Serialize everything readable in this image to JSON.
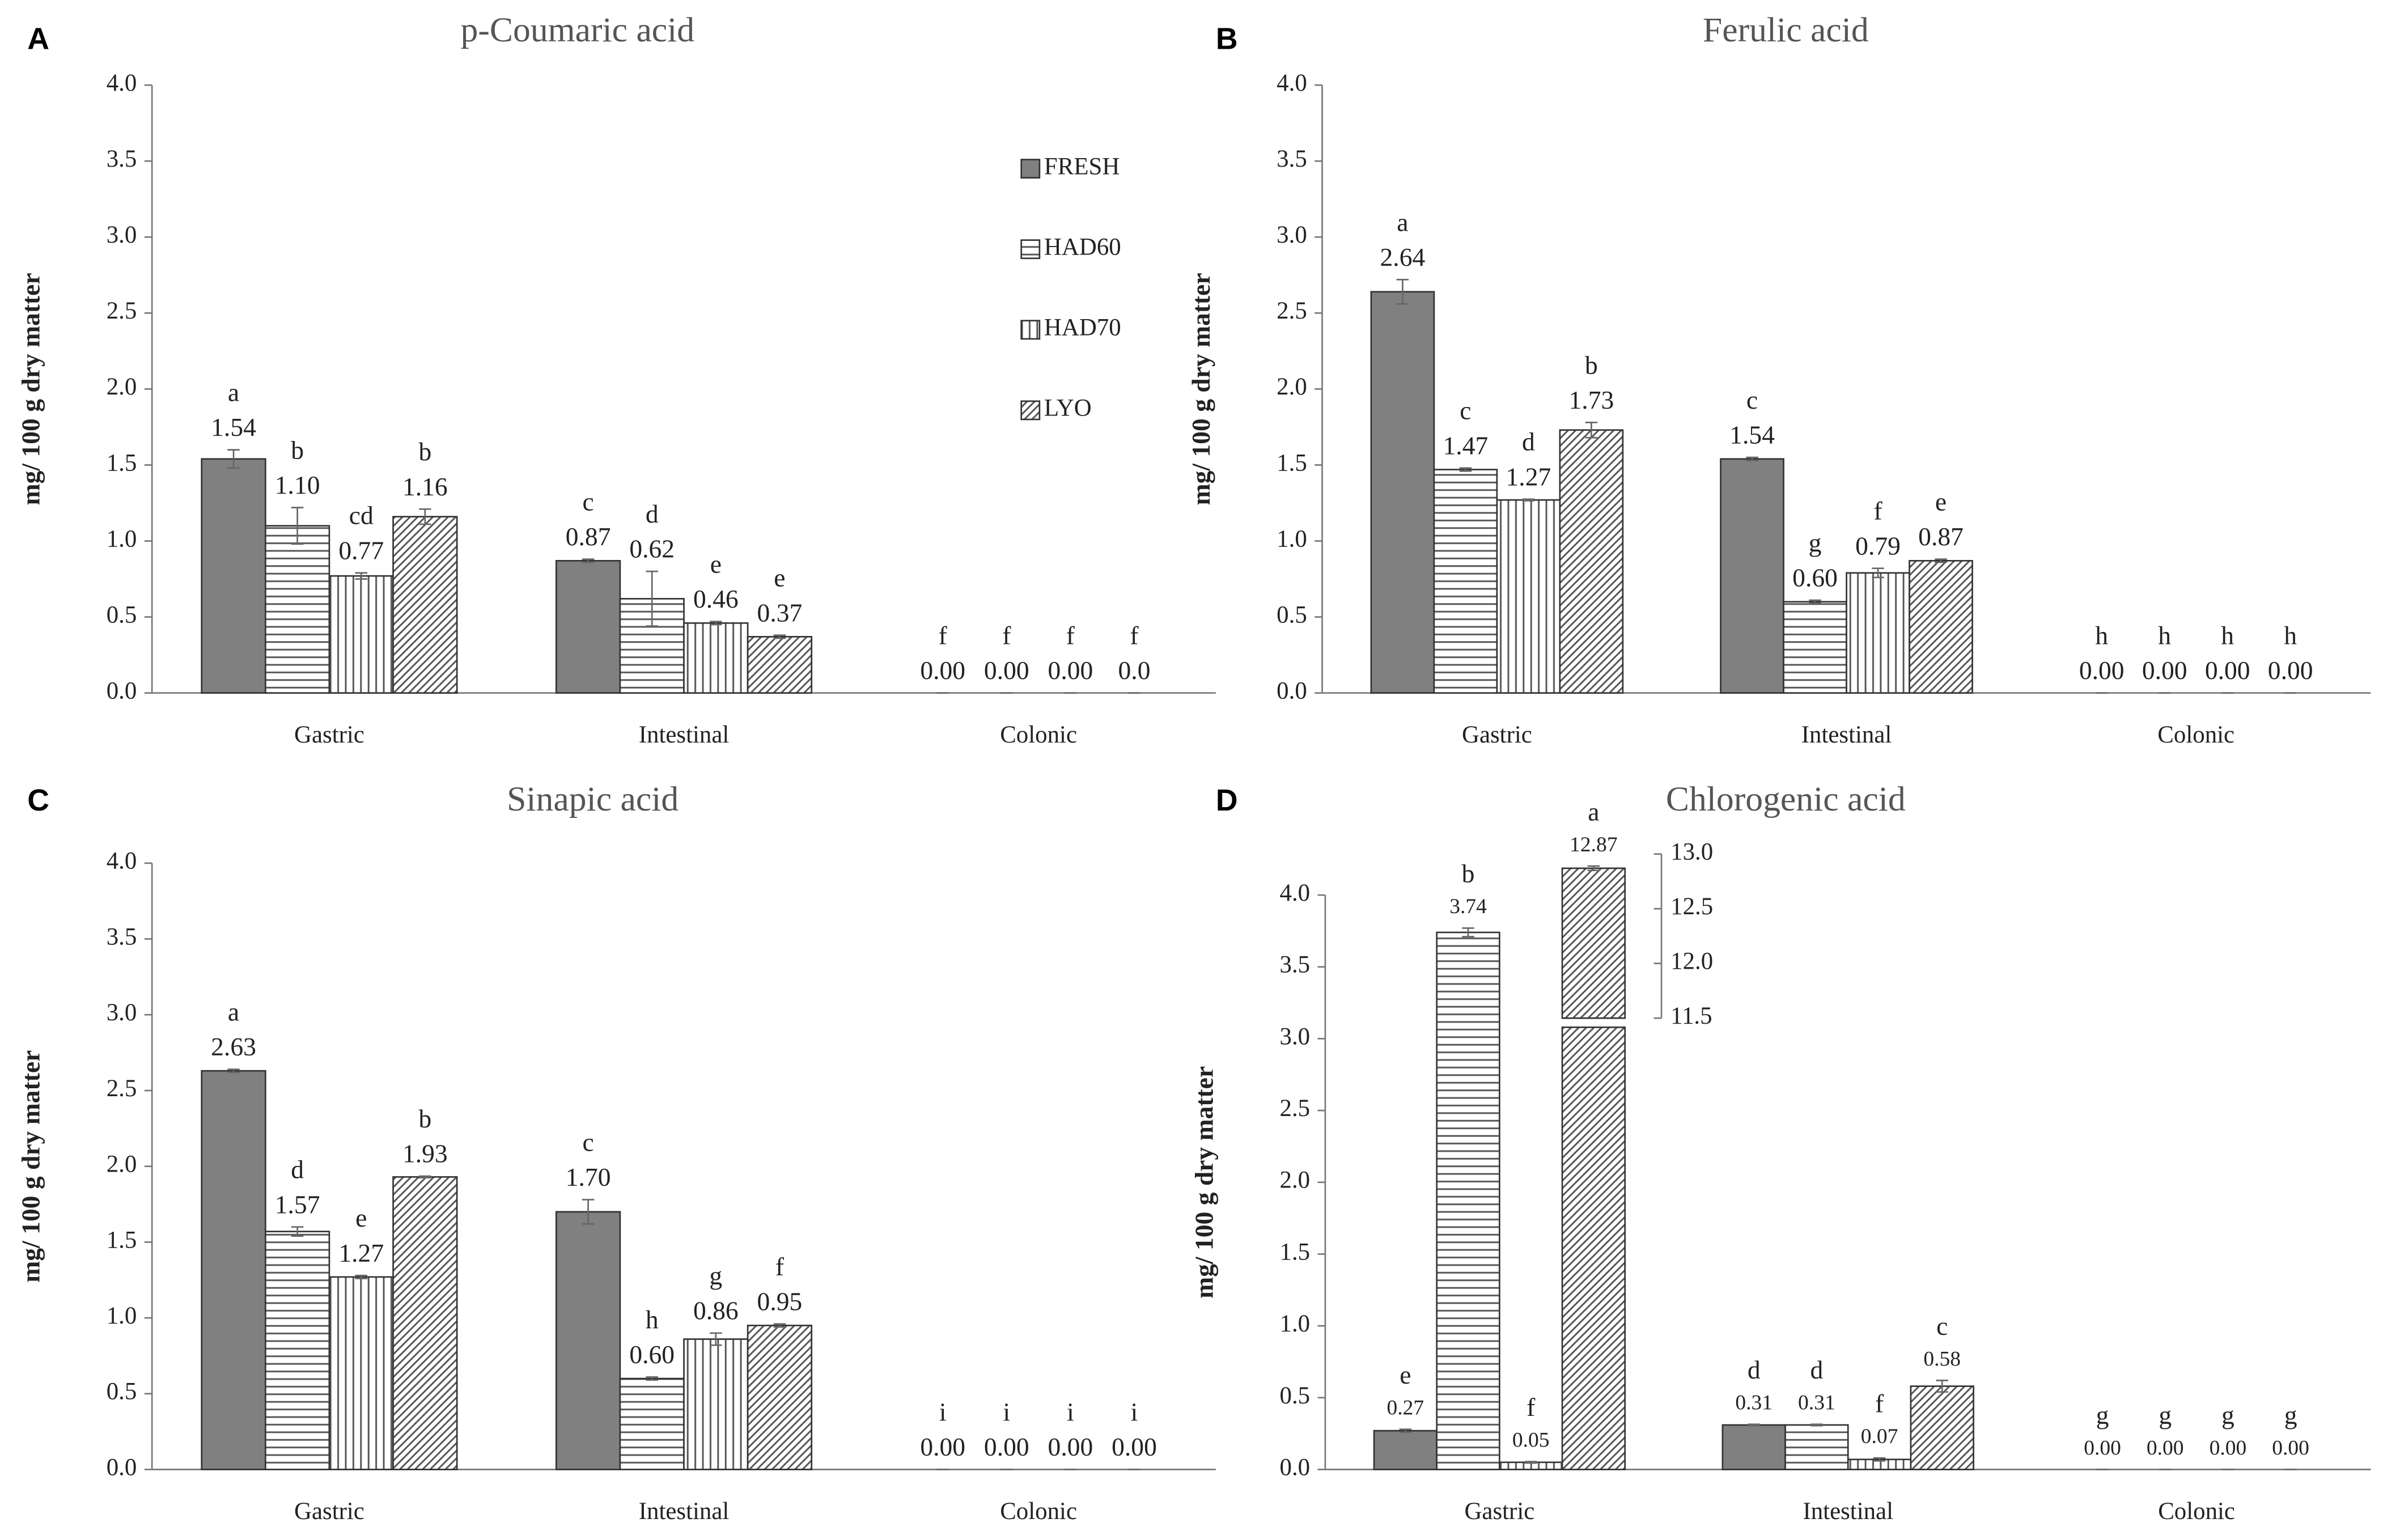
{
  "chart_data": [
    {
      "type": "bar",
      "panel": "A",
      "title": "p-Coumaric acid",
      "y_label": "mg/ 100 g dry matter",
      "categories": [
        "Gastric",
        "Intestinal",
        "Colonic"
      ],
      "ylim": [
        0,
        4
      ],
      "yticks": [
        {
          "value": 0,
          "label": "0.0"
        },
        {
          "value": 0.5,
          "label": "0.5"
        },
        {
          "value": 1,
          "label": "1.0"
        },
        {
          "value": 1.5,
          "label": "1.5"
        },
        {
          "value": 2,
          "label": "2.0"
        },
        {
          "value": 2.5,
          "label": "2.5"
        },
        {
          "value": 3,
          "label": "3.0"
        },
        {
          "value": 3.5,
          "label": "3.5"
        },
        {
          "value": 4,
          "label": "4.0"
        }
      ],
      "legend": "upper right",
      "series": [
        {
          "name": "FRESH",
          "color": "#808080",
          "pattern": "solid",
          "values": [
            1.54,
            0.87,
            0
          ],
          "value_labels": [
            "1.54",
            "0.87",
            "0.00"
          ],
          "errors": [
            0.06,
            0.01,
            0
          ],
          "letters": [
            "a",
            "c",
            "f"
          ]
        },
        {
          "name": "HAD60",
          "color": "#555555",
          "pattern": "horizontal",
          "values": [
            1.1,
            0.62,
            0
          ],
          "value_labels": [
            "1.10",
            "0.62",
            "0.00"
          ],
          "errors": [
            0.12,
            0.18,
            0
          ],
          "letters": [
            "b",
            "d",
            "f"
          ]
        },
        {
          "name": "HAD70",
          "color": "#555555",
          "pattern": "vertical",
          "values": [
            0.77,
            0.46,
            0
          ],
          "value_labels": [
            "0.77",
            "0.46",
            "0.00"
          ],
          "errors": [
            0.02,
            0.01,
            0
          ],
          "letters": [
            "cd",
            "e",
            "f"
          ]
        },
        {
          "name": "LYO",
          "color": "#555555",
          "pattern": "diagonal",
          "values": [
            1.16,
            0.37,
            0
          ],
          "value_labels": [
            "1.16",
            "0.37",
            "0.0"
          ],
          "errors": [
            0.05,
            0.01,
            0
          ],
          "letters": [
            "b",
            "e",
            "f"
          ]
        }
      ]
    },
    {
      "type": "bar",
      "panel": "B",
      "title": "Ferulic acid",
      "y_label": "mg/ 100 g dry matter",
      "categories": [
        "Gastric",
        "Intestinal",
        "Colonic"
      ],
      "ylim": [
        0,
        4
      ],
      "yticks": [
        {
          "value": 0,
          "label": "0.0"
        },
        {
          "value": 0.5,
          "label": "0.5"
        },
        {
          "value": 1,
          "label": "1.0"
        },
        {
          "value": 1.5,
          "label": "1.5"
        },
        {
          "value": 2,
          "label": "2.0"
        },
        {
          "value": 2.5,
          "label": "2.5"
        },
        {
          "value": 3,
          "label": "3.0"
        },
        {
          "value": 3.5,
          "label": "3.5"
        },
        {
          "value": 4,
          "label": "4.0"
        }
      ],
      "series": [
        {
          "color": "#808080",
          "pattern": "solid",
          "values": [
            2.64,
            1.54,
            0
          ],
          "value_labels": [
            "2.64",
            "1.54",
            "0.00"
          ],
          "errors": [
            0.08,
            0.01,
            0
          ],
          "letters": [
            "a",
            "c",
            "h"
          ]
        },
        {
          "color": "#555555",
          "pattern": "horizontal",
          "values": [
            1.47,
            0.6,
            0
          ],
          "value_labels": [
            "1.47",
            "0.60",
            "0.00"
          ],
          "errors": [
            0.01,
            0.01,
            0
          ],
          "letters": [
            "c",
            "g",
            "h"
          ]
        },
        {
          "color": "#555555",
          "pattern": "vertical",
          "values": [
            1.27,
            0.79,
            0
          ],
          "value_labels": [
            "1.27",
            "0.79",
            "0.00"
          ],
          "errors": [
            0.005,
            0.03,
            0
          ],
          "letters": [
            "d",
            "f",
            "h"
          ]
        },
        {
          "color": "#555555",
          "pattern": "diagonal",
          "values": [
            1.73,
            0.87,
            0
          ],
          "value_labels": [
            "1.73",
            "0.87",
            "0.00"
          ],
          "errors": [
            0.05,
            0.01,
            0
          ],
          "letters": [
            "b",
            "e",
            "h"
          ]
        }
      ]
    },
    {
      "type": "bar",
      "panel": "C",
      "title": "Sinapic acid",
      "y_label": "mg/ 100 g dry matter",
      "categories": [
        "Gastric",
        "Intestinal",
        "Colonic"
      ],
      "ylim": [
        0,
        4
      ],
      "yticks": [
        {
          "value": 0,
          "label": "0.0"
        },
        {
          "value": 0.5,
          "label": "0.5"
        },
        {
          "value": 1,
          "label": "1.0"
        },
        {
          "value": 1.5,
          "label": "1.5"
        },
        {
          "value": 2,
          "label": "2.0"
        },
        {
          "value": 2.5,
          "label": "2.5"
        },
        {
          "value": 3,
          "label": "3.0"
        },
        {
          "value": 3.5,
          "label": "3.5"
        },
        {
          "value": 4,
          "label": "4.0"
        }
      ],
      "series": [
        {
          "color": "#808080",
          "pattern": "solid",
          "values": [
            2.63,
            1.7,
            0
          ],
          "value_labels": [
            "2.63",
            "1.70",
            "0.00"
          ],
          "errors": [
            0.01,
            0.08,
            0
          ],
          "letters": [
            "a",
            "c",
            "i"
          ]
        },
        {
          "color": "#555555",
          "pattern": "horizontal",
          "values": [
            1.57,
            0.6,
            0
          ],
          "value_labels": [
            "1.57",
            "0.60",
            "0.00"
          ],
          "errors": [
            0.03,
            0.01,
            0
          ],
          "letters": [
            "d",
            "h",
            "i"
          ]
        },
        {
          "color": "#555555",
          "pattern": "vertical",
          "values": [
            1.27,
            0.86,
            0
          ],
          "value_labels": [
            "1.27",
            "0.86",
            "0.00"
          ],
          "errors": [
            0.01,
            0.04,
            0
          ],
          "letters": [
            "e",
            "g",
            "i"
          ]
        },
        {
          "color": "#555555",
          "pattern": "diagonal",
          "values": [
            1.93,
            0.95,
            0
          ],
          "value_labels": [
            "1.93",
            "0.95",
            "0.00"
          ],
          "errors": [
            0.005,
            0.01,
            0
          ],
          "letters": [
            "b",
            "f",
            "i"
          ]
        }
      ]
    },
    {
      "type": "bar",
      "panel": "D",
      "title": "Chlorogenic acid",
      "y_label": "mg/ 100 g dry matter",
      "categories": [
        "Gastric",
        "Intestinal",
        "Colonic"
      ],
      "ylim": [
        0,
        4
      ],
      "yticks": [
        {
          "value": 0,
          "label": "0.0"
        },
        {
          "value": 0.5,
          "label": "0.5"
        },
        {
          "value": 1,
          "label": "1.0"
        },
        {
          "value": 1.5,
          "label": "1.5"
        },
        {
          "value": 2,
          "label": "2.0"
        },
        {
          "value": 2.5,
          "label": "2.5"
        },
        {
          "value": 3,
          "label": "3.0"
        },
        {
          "value": 3.5,
          "label": "3.5"
        },
        {
          "value": 4,
          "label": "4.0"
        }
      ],
      "y2lim": [
        11.5,
        13
      ],
      "y2ticks": [
        11.5,
        {
          "value": 12,
          "label": "12.0"
        },
        12.5,
        {
          "value": 13,
          "label": "13.0"
        }
      ],
      "series": [
        {
          "color": "#808080",
          "pattern": "solid",
          "values": [
            0.27,
            0.31,
            0
          ],
          "value_labels": [
            "0.27",
            "0.31",
            "0.00"
          ],
          "errors": [
            0.01,
            0.005,
            0
          ],
          "letters": [
            "e",
            "d",
            "g"
          ]
        },
        {
          "color": "#555555",
          "pattern": "horizontal",
          "values": [
            3.74,
            0.31,
            0
          ],
          "value_labels": [
            "3.74",
            "0.31",
            "0.00"
          ],
          "errors": [
            0.03,
            0.005,
            0
          ],
          "letters": [
            "b",
            "d",
            "g"
          ]
        },
        {
          "color": "#555555",
          "pattern": "vertical",
          "values": [
            0.05,
            0.07,
            0
          ],
          "value_labels": [
            "0.05",
            "0.07",
            "0.00"
          ],
          "errors": [
            0.005,
            0.01,
            0
          ],
          "letters": [
            "f",
            "f",
            "g"
          ]
        },
        {
          "color": "#555555",
          "pattern": "diagonal",
          "values": [
            12.87,
            0.58,
            0
          ],
          "value_labels": [
            "12.87",
            "0.58",
            "0.00"
          ],
          "errors": [
            0.02,
            0.04,
            0
          ],
          "letters": [
            "a",
            "c",
            "g"
          ]
        }
      ]
    }
  ]
}
